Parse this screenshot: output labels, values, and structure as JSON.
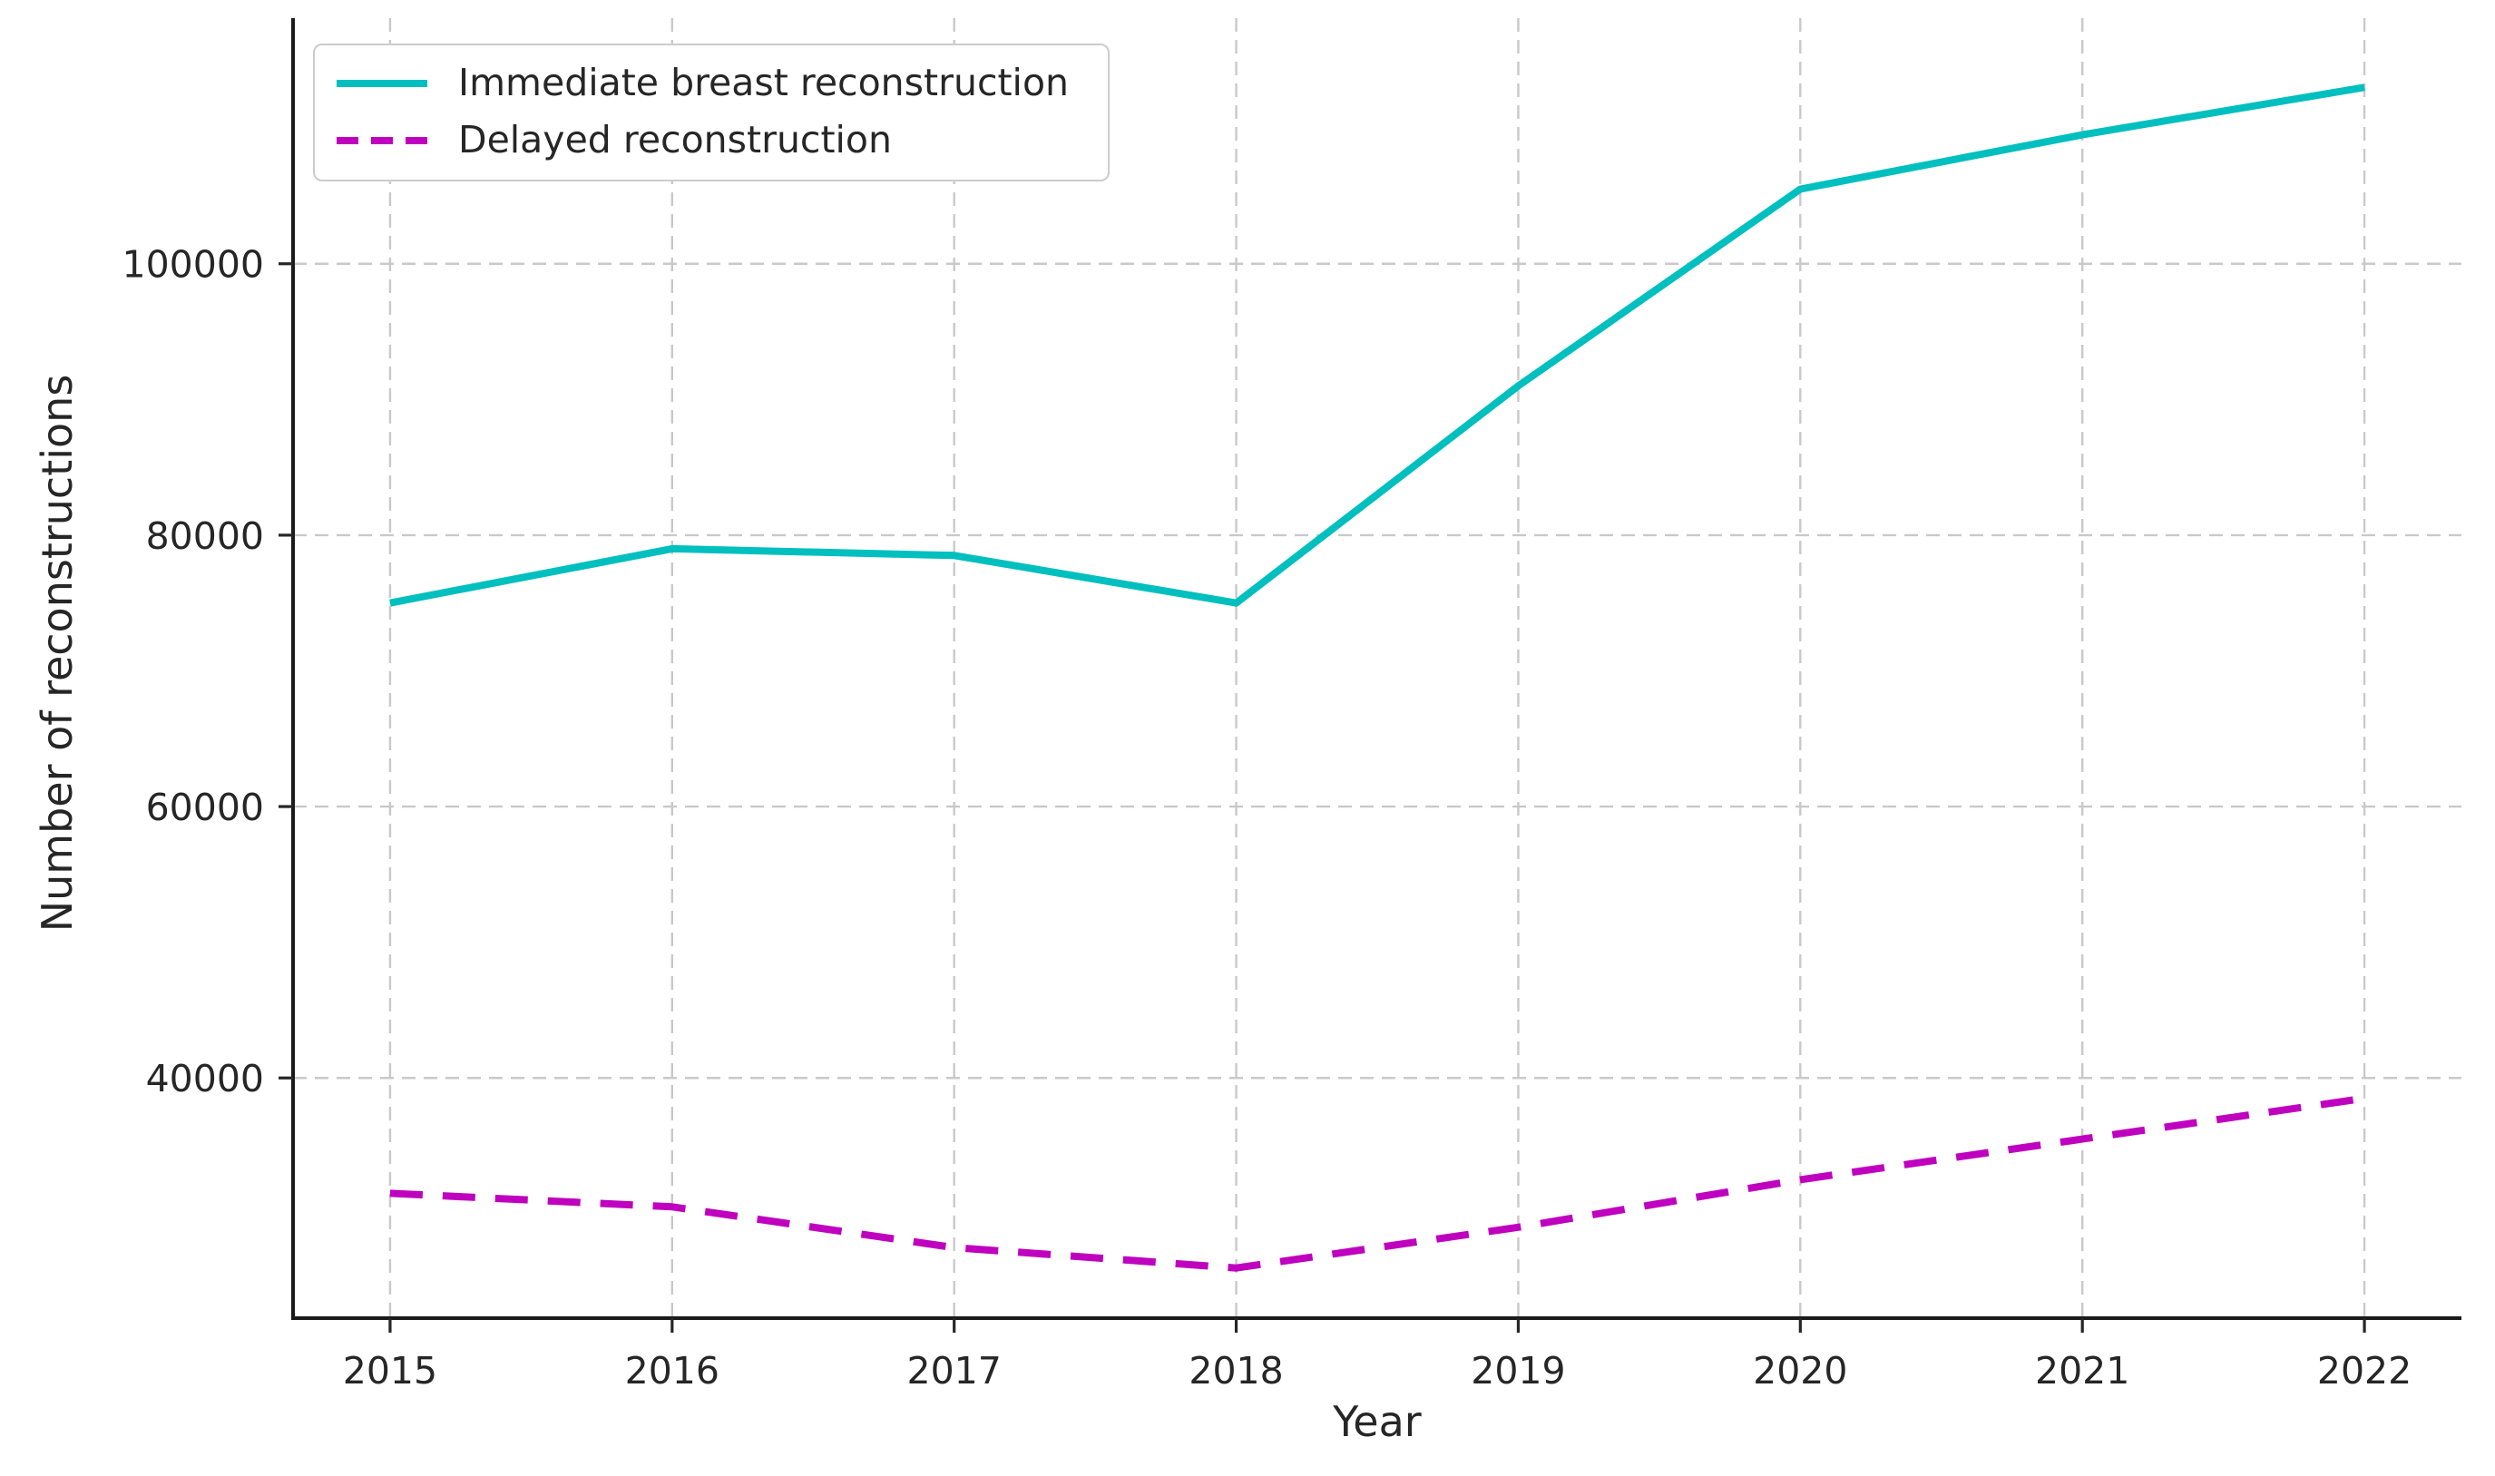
{
  "chart_data": {
    "type": "line",
    "title": "",
    "xlabel": "Year",
    "ylabel": "Number of reconstructions",
    "categories": [
      2015,
      2016,
      2017,
      2018,
      2019,
      2020,
      2021,
      2022
    ],
    "series": [
      {
        "name": "Immediate breast reconstruction",
        "color": "#00BFBF",
        "style": "solid",
        "values": [
          75000,
          79000,
          78500,
          75000,
          91000,
          105500,
          109500,
          113000
        ]
      },
      {
        "name": "Delayed reconstruction",
        "color": "#BF00BF",
        "style": "dashed",
        "values": [
          31500,
          30500,
          27500,
          26000,
          29000,
          32500,
          35500,
          38500
        ]
      }
    ],
    "x_ticks": [
      2015,
      2016,
      2017,
      2018,
      2019,
      2020,
      2021,
      2022
    ],
    "y_ticks": [
      40000,
      60000,
      80000,
      100000
    ],
    "xlim": [
      2014.656,
      2022.344
    ],
    "ylim": [
      22300,
      118100
    ],
    "grid": true,
    "grid_style": "dashed",
    "legend_position": "upper-left",
    "colors": {
      "grid": "#c9c9c9",
      "spine": "#1a1a1a",
      "text": "#262626",
      "background": "#ffffff"
    }
  }
}
